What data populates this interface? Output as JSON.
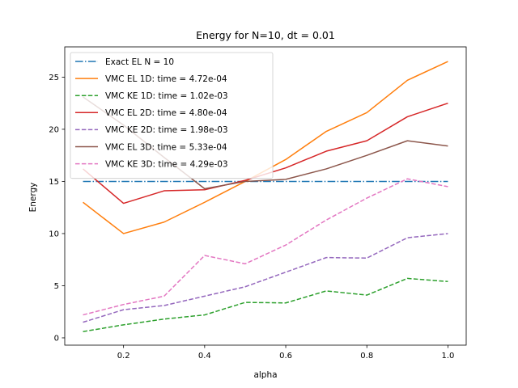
{
  "chart_data": {
    "type": "line",
    "title": "Energy for N=10, dt = 0.01",
    "xlabel": "alpha",
    "ylabel": "Energy",
    "xlim": [
      0.055,
      1.045
    ],
    "ylim": [
      -0.7,
      27.9
    ],
    "xticks": [
      0.2,
      0.4,
      0.6,
      0.8,
      1.0
    ],
    "xtick_labels": [
      "0.2",
      "0.4",
      "0.6",
      "0.8",
      "1.0"
    ],
    "yticks": [
      0,
      5,
      10,
      15,
      20,
      25
    ],
    "ytick_labels": [
      "0",
      "5",
      "10",
      "15",
      "20",
      "25"
    ],
    "grid": false,
    "legend_position": "top-left",
    "x": [
      0.1,
      0.2,
      0.3,
      0.4,
      0.5,
      0.6,
      0.7,
      0.8,
      0.9,
      1.0
    ],
    "series": [
      {
        "name": "Exact EL N = 10",
        "color": "#1f77b4",
        "style": "dashdot",
        "values": [
          15,
          15,
          15,
          15,
          15,
          15,
          15,
          15,
          15,
          15
        ]
      },
      {
        "name": "VMC EL 1D: time = 4.72e-04",
        "color": "#ff7f0e",
        "style": "solid",
        "values": [
          13.0,
          10.0,
          11.1,
          13.0,
          15.0,
          17.1,
          19.8,
          21.6,
          24.7,
          26.5
        ]
      },
      {
        "name": "VMC KE 1D: time = 1.02e-03",
        "color": "#2ca02c",
        "style": "dashed",
        "values": [
          0.6,
          1.25,
          1.8,
          2.2,
          3.4,
          3.35,
          4.5,
          4.1,
          5.7,
          5.4
        ]
      },
      {
        "name": "VMC EL 2D: time = 4.80e-04",
        "color": "#d62728",
        "style": "solid",
        "values": [
          16.2,
          12.9,
          14.1,
          14.2,
          15.1,
          16.3,
          17.9,
          18.9,
          21.2,
          22.5
        ]
      },
      {
        "name": "VMC KE 2D: time = 1.98e-03",
        "color": "#9467bd",
        "style": "dashed",
        "values": [
          1.5,
          2.7,
          3.1,
          4.0,
          4.9,
          6.3,
          7.7,
          7.65,
          9.6,
          10.0
        ]
      },
      {
        "name": "VMC EL 3D: time = 5.33e-04",
        "color": "#8c564b",
        "style": "solid",
        "values": [
          23.1,
          20.4,
          17.3,
          14.3,
          15.0,
          15.2,
          16.2,
          17.5,
          18.9,
          18.4
        ]
      },
      {
        "name": "VMC KE 3D: time = 4.29e-03",
        "color": "#e377c2",
        "style": "dashed",
        "values": [
          2.2,
          3.2,
          4.0,
          7.9,
          7.1,
          8.9,
          11.3,
          13.4,
          15.25,
          14.5
        ]
      }
    ]
  }
}
